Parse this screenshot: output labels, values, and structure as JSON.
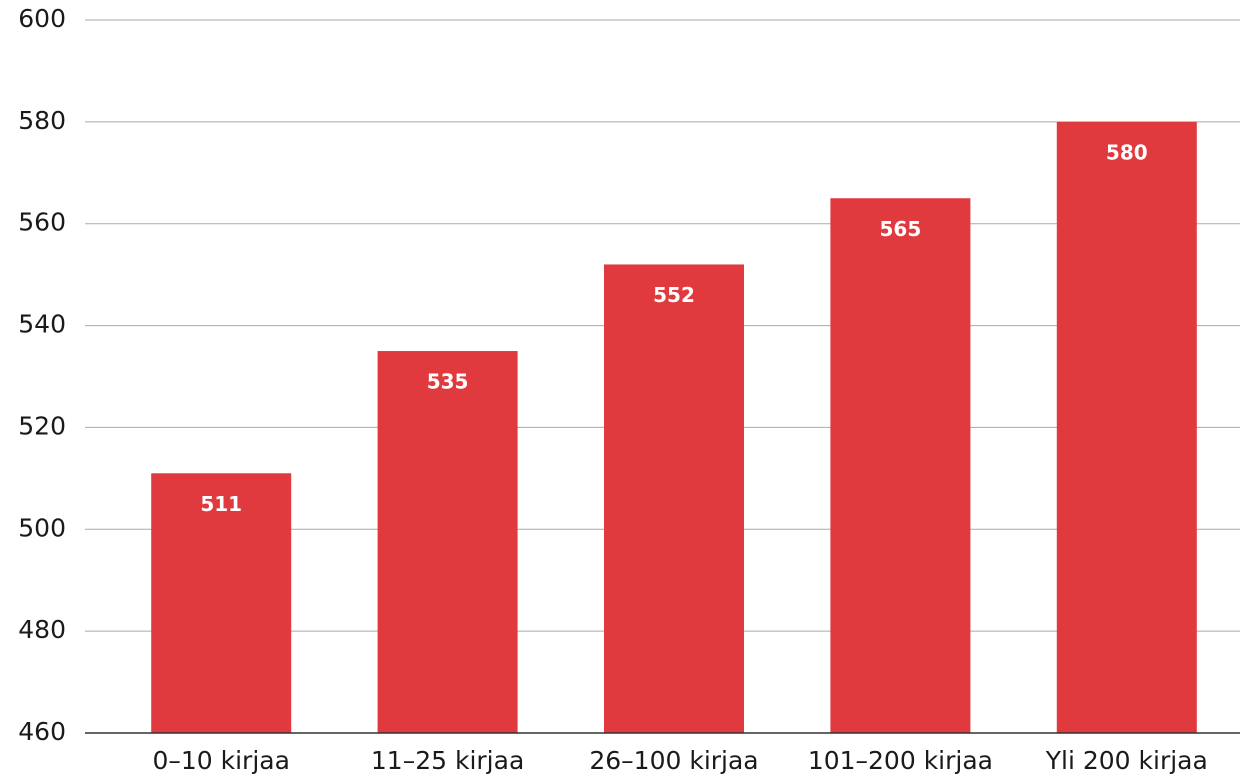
{
  "chart_data": {
    "type": "bar",
    "categories": [
      "0–10 kirjaa",
      "11–25 kirjaa",
      "26–100 kirjaa",
      "101–200 kirjaa",
      "Yli 200 kirjaa"
    ],
    "values": [
      511,
      535,
      552,
      565,
      580
    ],
    "color": "#e0393e",
    "ylim": [
      460,
      600
    ],
    "yticks": [
      460,
      480,
      500,
      520,
      540,
      560,
      580,
      600
    ],
    "grid": true
  }
}
